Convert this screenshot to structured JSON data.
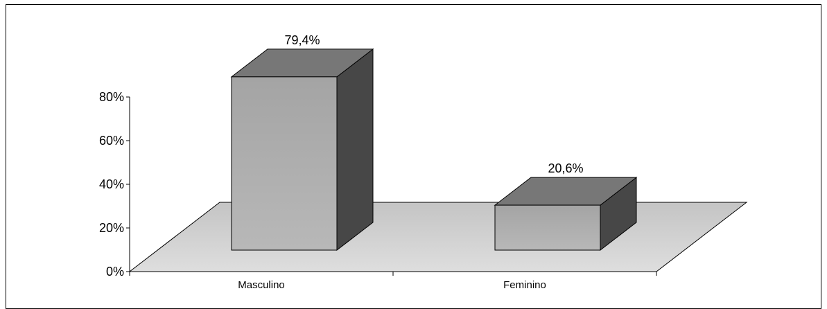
{
  "chart_data": {
    "type": "bar",
    "categories": [
      "Masculino",
      "Feminino"
    ],
    "values": [
      79.4,
      20.6
    ],
    "data_labels": [
      "79,4%",
      "20,6%"
    ],
    "ylim": [
      0,
      80
    ],
    "yticks": [
      0,
      20,
      40,
      60,
      80
    ],
    "ytick_labels": [
      "0%",
      "20%",
      "40%",
      "60%",
      "80%"
    ],
    "title": "",
    "xlabel": "",
    "ylabel": "",
    "grid": false,
    "legend": "none",
    "colors": {
      "front": "#a8a8a8",
      "top": "#777777",
      "side": "#474747",
      "floor": "#d2d2d2"
    }
  }
}
